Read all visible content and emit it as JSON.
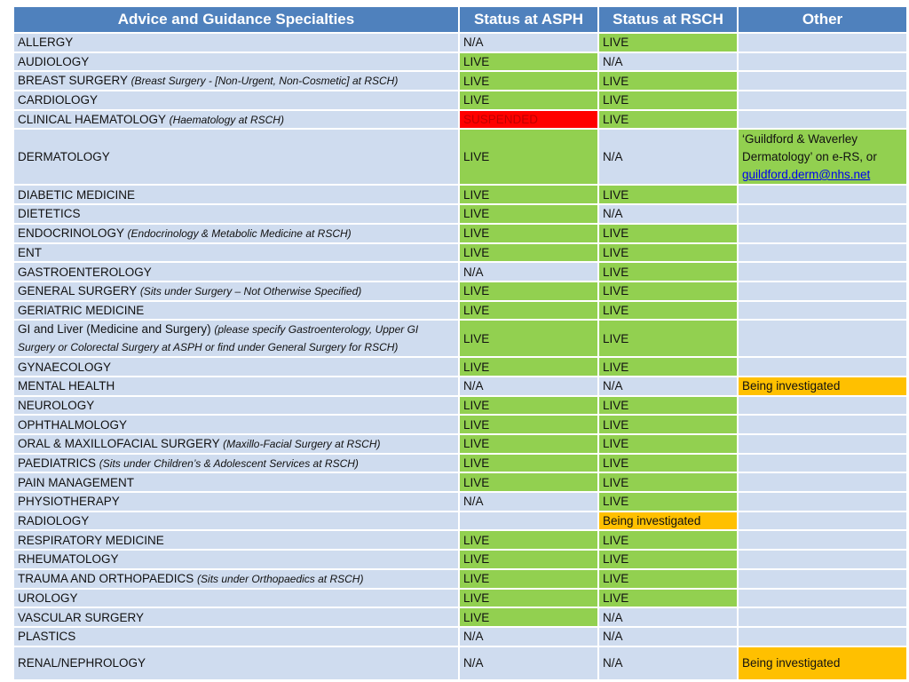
{
  "headers": [
    "Advice and Guidance Specialties",
    "Status at ASPH",
    "Status at RSCH",
    "Other"
  ],
  "rows": [
    {
      "name": "ALLERGY",
      "note": "",
      "asph": "N/A",
      "rsch": "LIVE",
      "other": ""
    },
    {
      "name": "AUDIOLOGY",
      "note": "",
      "asph": "LIVE",
      "rsch": "N/A",
      "other": ""
    },
    {
      "name": "BREAST SURGERY",
      "note": "(Breast Surgery - [Non-Urgent, Non-Cosmetic] at RSCH)",
      "asph": "LIVE",
      "rsch": "LIVE",
      "other": ""
    },
    {
      "name": "CARDIOLOGY",
      "note": "",
      "asph": "LIVE",
      "rsch": "LIVE",
      "other": ""
    },
    {
      "name": "CLINICAL HAEMATOLOGY",
      "note": "(Haematology at RSCH)",
      "asph": "SUSPENDED",
      "rsch": "LIVE",
      "other": ""
    },
    {
      "name": "DERMATOLOGY",
      "note": "",
      "asph": "LIVE",
      "rsch": "N/A",
      "other": "‘Guildford & Waverley Dermatology’ on e-RS, or",
      "other_link": "guildford.derm@nhs.net"
    },
    {
      "name": "DIABETIC MEDICINE",
      "note": "",
      "asph": "LIVE",
      "rsch": "LIVE",
      "other": ""
    },
    {
      "name": "DIETETICS",
      "note": "",
      "asph": "LIVE",
      "rsch": "N/A",
      "other": ""
    },
    {
      "name": "ENDOCRINOLOGY",
      "note": "(Endocrinology & Metabolic Medicine at RSCH)",
      "asph": "LIVE",
      "rsch": "LIVE",
      "other": ""
    },
    {
      "name": "ENT",
      "note": "",
      "asph": "LIVE",
      "rsch": "LIVE",
      "other": ""
    },
    {
      "name": "GASTROENTEROLOGY",
      "note": "",
      "asph": "N/A",
      "rsch": "LIVE",
      "other": ""
    },
    {
      "name": "GENERAL SURGERY",
      "note": "(Sits under Surgery – Not Otherwise Specified)",
      "asph": "LIVE",
      "rsch": "LIVE",
      "other": ""
    },
    {
      "name": "GERIATRIC MEDICINE",
      "note": "",
      "asph": "LIVE",
      "rsch": "LIVE",
      "other": ""
    },
    {
      "name": "GI and Liver (Medicine and Surgery)",
      "note": "(please specify Gastroenterology, Upper GI Surgery or Colorectal Surgery at ASPH or find under General Surgery for RSCH)",
      "asph": "LIVE",
      "rsch": "LIVE",
      "other": ""
    },
    {
      "name": "GYNAECOLOGY",
      "note": "",
      "asph": "LIVE",
      "rsch": "LIVE",
      "other": ""
    },
    {
      "name": "MENTAL HEALTH",
      "note": "",
      "asph": "N/A",
      "rsch": "N/A",
      "other": "Being investigated"
    },
    {
      "name": "NEUROLOGY",
      "note": "",
      "asph": "LIVE",
      "rsch": "LIVE",
      "other": ""
    },
    {
      "name": "OPHTHALMOLOGY",
      "note": "",
      "asph": "LIVE",
      "rsch": "LIVE",
      "other": ""
    },
    {
      "name": "ORAL & MAXILLOFACIAL SURGERY",
      "note": "(Maxillo-Facial Surgery at RSCH)",
      "asph": "LIVE",
      "rsch": "LIVE",
      "other": ""
    },
    {
      "name": "PAEDIATRICS",
      "note": "(Sits under Children’s & Adolescent Services at RSCH)",
      "asph": "LIVE",
      "rsch": "LIVE",
      "other": ""
    },
    {
      "name": "PAIN MANAGEMENT",
      "note": "",
      "asph": "LIVE",
      "rsch": "LIVE",
      "other": ""
    },
    {
      "name": "PHYSIOTHERAPY",
      "note": "",
      "asph": "N/A",
      "rsch": "LIVE",
      "other": ""
    },
    {
      "name": "RADIOLOGY",
      "note": "",
      "asph": "",
      "rsch": "Being investigated",
      "other": ""
    },
    {
      "name": "RESPIRATORY MEDICINE",
      "note": "",
      "asph": "LIVE",
      "rsch": "LIVE",
      "other": ""
    },
    {
      "name": "RHEUMATOLOGY",
      "note": "",
      "asph": "LIVE",
      "rsch": "LIVE",
      "other": ""
    },
    {
      "name": "TRAUMA AND ORTHOPAEDICS",
      "note": "(Sits under Orthopaedics at RSCH)",
      "asph": "LIVE",
      "rsch": "LIVE",
      "other": ""
    },
    {
      "name": "UROLOGY",
      "note": "",
      "asph": "LIVE",
      "rsch": "LIVE",
      "other": ""
    },
    {
      "name": "VASCULAR SURGERY",
      "note": "",
      "asph": "LIVE",
      "rsch": "N/A",
      "other": ""
    },
    {
      "name": "PLASTICS",
      "note": "",
      "asph": "N/A",
      "rsch": "N/A",
      "other": ""
    },
    {
      "name": "RENAL/NEPHROLOGY",
      "note": "",
      "asph": "N/A",
      "rsch": "N/A",
      "other": "Being investigated"
    }
  ],
  "colors": {
    "header": "#4f81bd",
    "row": "#cfdcef",
    "live": "#92d050",
    "suspended": "#ff0000",
    "investigating": "#ffc000"
  }
}
